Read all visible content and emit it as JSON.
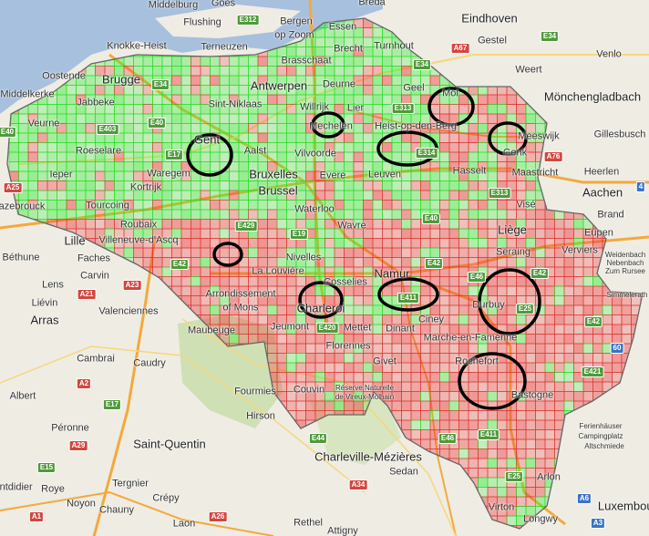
{
  "map": {
    "colors": {
      "land": "#efece4",
      "sea": "#a7c0dd",
      "forest": "#cfe0b4",
      "road": "#f4a93c",
      "minor_road": "#f7d77a",
      "border": "#666666",
      "cell_green": "#33ee33",
      "cell_red": "#ee3333",
      "ellipse": "#000000"
    },
    "cities": [
      {
        "name": "Middelburg",
        "size": "mid"
      },
      {
        "name": "Goes",
        "size": "mid"
      },
      {
        "name": "Flushing",
        "size": "mid"
      },
      {
        "name": "Bergen",
        "size": "mid"
      },
      {
        "name": "op Zoom",
        "size": "mid"
      },
      {
        "name": "Breda",
        "size": "mid"
      },
      {
        "name": "Eindhoven",
        "size": "big"
      },
      {
        "name": "Gestel",
        "size": "mid"
      },
      {
        "name": "Venlo",
        "size": "mid"
      },
      {
        "name": "Knokke-Heist",
        "size": "mid"
      },
      {
        "name": "Terneuzen",
        "size": "mid"
      },
      {
        "name": "Essen",
        "size": "mid"
      },
      {
        "name": "Brecht",
        "size": "mid"
      },
      {
        "name": "Turnhout",
        "size": "mid"
      },
      {
        "name": "Brasschaat",
        "size": "mid"
      },
      {
        "name": "Weert",
        "size": "mid"
      },
      {
        "name": "Oostende",
        "size": "mid"
      },
      {
        "name": "Brugge",
        "size": "big"
      },
      {
        "name": "Antwerpen",
        "size": "big"
      },
      {
        "name": "Deurne",
        "size": "mid"
      },
      {
        "name": "Geel",
        "size": "mid"
      },
      {
        "name": "Mol",
        "size": "mid"
      },
      {
        "name": "Mönchengladbach",
        "size": "big"
      },
      {
        "name": "Middelkerke",
        "size": "mid"
      },
      {
        "name": "Jabbeke",
        "size": "mid"
      },
      {
        "name": "Sint-Niklaas",
        "size": "mid"
      },
      {
        "name": "Willrijk",
        "size": "mid"
      },
      {
        "name": "Lier",
        "size": "mid"
      },
      {
        "name": "Veurne",
        "size": "mid"
      },
      {
        "name": "Mechelen",
        "size": "mid"
      },
      {
        "name": "Heist-op-den-Berg",
        "size": "mid"
      },
      {
        "name": "Meeswijk",
        "size": "mid"
      },
      {
        "name": "Gillesbusch",
        "size": "mid"
      },
      {
        "name": "Gent",
        "size": "big"
      },
      {
        "name": "Roeselare",
        "size": "mid"
      },
      {
        "name": "Aalst",
        "size": "mid"
      },
      {
        "name": "Vilvoorde",
        "size": "mid"
      },
      {
        "name": "Genk",
        "size": "mid"
      },
      {
        "name": "Ieper",
        "size": "mid"
      },
      {
        "name": "Waregem",
        "size": "mid"
      },
      {
        "name": "Bruxelles",
        "size": "big"
      },
      {
        "name": "Evere",
        "size": "mid"
      },
      {
        "name": "Leuven",
        "size": "mid"
      },
      {
        "name": "Hasselt",
        "size": "mid"
      },
      {
        "name": "Maastricht",
        "size": "mid"
      },
      {
        "name": "Heerlen",
        "size": "mid"
      },
      {
        "name": "Kortrijk",
        "size": "mid"
      },
      {
        "name": "Brussel",
        "size": "big"
      },
      {
        "name": "Aachen",
        "size": "big"
      },
      {
        "name": "Hazebrouck",
        "size": "mid"
      },
      {
        "name": "Tourcoing",
        "size": "mid"
      },
      {
        "name": "Waterloo",
        "size": "mid"
      },
      {
        "name": "Visé",
        "size": "mid"
      },
      {
        "name": "Brand",
        "size": "mid"
      },
      {
        "name": "Roubaix",
        "size": "mid"
      },
      {
        "name": "Wavre",
        "size": "mid"
      },
      {
        "name": "Liège",
        "size": "big"
      },
      {
        "name": "Lille",
        "size": "big"
      },
      {
        "name": "Villeneuve-d'Ascq",
        "size": "mid"
      },
      {
        "name": "Eupen",
        "size": "mid"
      },
      {
        "name": "Béthune",
        "size": "mid"
      },
      {
        "name": "Faches",
        "size": "mid"
      },
      {
        "name": "Nivelles",
        "size": "mid"
      },
      {
        "name": "Seraing",
        "size": "mid"
      },
      {
        "name": "Verviers",
        "size": "mid"
      },
      {
        "name": "Weidenbach",
        "size": "sm"
      },
      {
        "name": "Nebenbach",
        "size": "sm"
      },
      {
        "name": "Zum Rursee",
        "size": "sm"
      },
      {
        "name": "Lens",
        "size": "mid"
      },
      {
        "name": "Carvin",
        "size": "mid"
      },
      {
        "name": "La Louvière",
        "size": "mid"
      },
      {
        "name": "Namur",
        "size": "big"
      },
      {
        "name": "Liévin",
        "size": "mid"
      },
      {
        "name": "Cosselies",
        "size": "mid"
      },
      {
        "name": "Arrondissement",
        "size": "mid"
      },
      {
        "name": "of Mons",
        "size": "mid"
      },
      {
        "name": "Arras",
        "size": "big"
      },
      {
        "name": "Valenciennes",
        "size": "mid"
      },
      {
        "name": "Charleroi",
        "size": "big"
      },
      {
        "name": "Durbuy",
        "size": "mid"
      },
      {
        "name": "Simmelerath",
        "size": "sm"
      },
      {
        "name": "Ciney",
        "size": "mid"
      },
      {
        "name": "Maubeuge",
        "size": "mid"
      },
      {
        "name": "Jeumont",
        "size": "mid"
      },
      {
        "name": "Mettet",
        "size": "mid"
      },
      {
        "name": "Dinant",
        "size": "mid"
      },
      {
        "name": "Marche-en-Famenne",
        "size": "mid"
      },
      {
        "name": "Florennes",
        "size": "mid"
      },
      {
        "name": "Cambrai",
        "size": "mid"
      },
      {
        "name": "Caudry",
        "size": "mid"
      },
      {
        "name": "Givet",
        "size": "mid"
      },
      {
        "name": "Rochefort",
        "size": "mid"
      },
      {
        "name": "Albert",
        "size": "mid"
      },
      {
        "name": "Fourmies",
        "size": "mid"
      },
      {
        "name": "Couvin",
        "size": "mid"
      },
      {
        "name": "Réserve Naturelle",
        "size": "sm"
      },
      {
        "name": "de Vireux-Molhain",
        "size": "sm"
      },
      {
        "name": "Bastogne",
        "size": "mid"
      },
      {
        "name": "Hirson",
        "size": "mid"
      },
      {
        "name": "Péronne",
        "size": "mid"
      },
      {
        "name": "Saint-Quentin",
        "size": "big"
      },
      {
        "name": "Ferienhäuser",
        "size": "sm"
      },
      {
        "name": "Campingplatz",
        "size": "sm"
      },
      {
        "name": "Altschmiede",
        "size": "sm"
      },
      {
        "name": "Charleville-Mézières",
        "size": "big"
      },
      {
        "name": "Sedan",
        "size": "mid"
      },
      {
        "name": "Arlon",
        "size": "mid"
      },
      {
        "name": "Montdidier",
        "size": "mid"
      },
      {
        "name": "Roye",
        "size": "mid"
      },
      {
        "name": "Tergnier",
        "size": "mid"
      },
      {
        "name": "Noyon",
        "size": "mid"
      },
      {
        "name": "Crépy",
        "size": "mid"
      },
      {
        "name": "Chauny",
        "size": "mid"
      },
      {
        "name": "Virton",
        "size": "mid"
      },
      {
        "name": "Longwy",
        "size": "mid"
      },
      {
        "name": "Luxembourg",
        "size": "big"
      },
      {
        "name": "Laon",
        "size": "mid"
      },
      {
        "name": "Rethel",
        "size": "mid"
      },
      {
        "name": "Attigny",
        "size": "mid"
      }
    ],
    "road_shields": [
      {
        "ref": "E312",
        "type": "E"
      },
      {
        "ref": "E34",
        "type": "E"
      },
      {
        "ref": "A67",
        "type": "A"
      },
      {
        "ref": "E34",
        "type": "E"
      },
      {
        "ref": "E34",
        "type": "E"
      },
      {
        "ref": "E313",
        "type": "E"
      },
      {
        "ref": "E40",
        "type": "E"
      },
      {
        "ref": "E403",
        "type": "E"
      },
      {
        "ref": "E40",
        "type": "E"
      },
      {
        "ref": "E17",
        "type": "E"
      },
      {
        "ref": "E314",
        "type": "E"
      },
      {
        "ref": "A76",
        "type": "A"
      },
      {
        "ref": "A25",
        "type": "A"
      },
      {
        "ref": "E313",
        "type": "E"
      },
      {
        "ref": "4",
        "type": "N"
      },
      {
        "ref": "E429",
        "type": "E"
      },
      {
        "ref": "E19",
        "type": "E"
      },
      {
        "ref": "E40",
        "type": "E"
      },
      {
        "ref": "E42",
        "type": "E"
      },
      {
        "ref": "E42",
        "type": "E"
      },
      {
        "ref": "E42",
        "type": "E"
      },
      {
        "ref": "A23",
        "type": "A"
      },
      {
        "ref": "A21",
        "type": "A"
      },
      {
        "ref": "E46",
        "type": "E"
      },
      {
        "ref": "E411",
        "type": "E"
      },
      {
        "ref": "E25",
        "type": "E"
      },
      {
        "ref": "E420",
        "type": "E"
      },
      {
        "ref": "E42",
        "type": "E"
      },
      {
        "ref": "60",
        "type": "N"
      },
      {
        "ref": "A2",
        "type": "A"
      },
      {
        "ref": "E17",
        "type": "E"
      },
      {
        "ref": "E421",
        "type": "E"
      },
      {
        "ref": "A29",
        "type": "A"
      },
      {
        "ref": "E44",
        "type": "E"
      },
      {
        "ref": "E46",
        "type": "E"
      },
      {
        "ref": "E411",
        "type": "E"
      },
      {
        "ref": "E15",
        "type": "E"
      },
      {
        "ref": "A34",
        "type": "A"
      },
      {
        "ref": "E25",
        "type": "E"
      },
      {
        "ref": "A6",
        "type": "N"
      },
      {
        "ref": "A1",
        "type": "A"
      },
      {
        "ref": "A26",
        "type": "A"
      },
      {
        "ref": "A3",
        "type": "N"
      }
    ],
    "highlight_circles": [
      {
        "label": "Gent"
      },
      {
        "label": "Mechelen"
      },
      {
        "label": "Mol"
      },
      {
        "label": "Genk"
      },
      {
        "label": "E314"
      },
      {
        "label": "Villeneuve-d'Ascq east"
      },
      {
        "label": "Charleroi"
      },
      {
        "label": "Namur E411"
      },
      {
        "label": "Durbuy"
      },
      {
        "label": "Rochefort"
      }
    ]
  }
}
